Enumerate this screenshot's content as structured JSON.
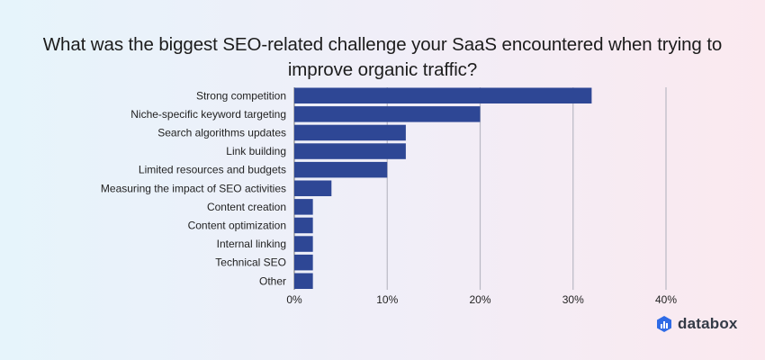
{
  "chart_data": {
    "type": "bar",
    "orientation": "horizontal",
    "title": "What was the biggest SEO-related challenge your SaaS encountered when trying to improve organic traffic?",
    "categories": [
      "Strong competition",
      "Niche-specific keyword targeting",
      "Search algorithms updates",
      "Link building",
      "Limited resources and budgets",
      "Measuring the impact of SEO activities",
      "Content creation",
      "Content optimization",
      "Internal linking",
      "Technical SEO",
      "Other"
    ],
    "values": [
      32,
      20,
      12,
      12,
      10,
      4,
      2,
      2,
      2,
      2,
      2
    ],
    "xlim": [
      0,
      40
    ],
    "xticks": [
      0,
      10,
      20,
      30,
      40
    ],
    "tick_labels": [
      "0%",
      "10%",
      "20%",
      "30%",
      "40%"
    ],
    "grid": "vertical",
    "bar_color": "#2e4795"
  },
  "brand": {
    "name": "databox",
    "icon": "databox-logo-icon"
  }
}
